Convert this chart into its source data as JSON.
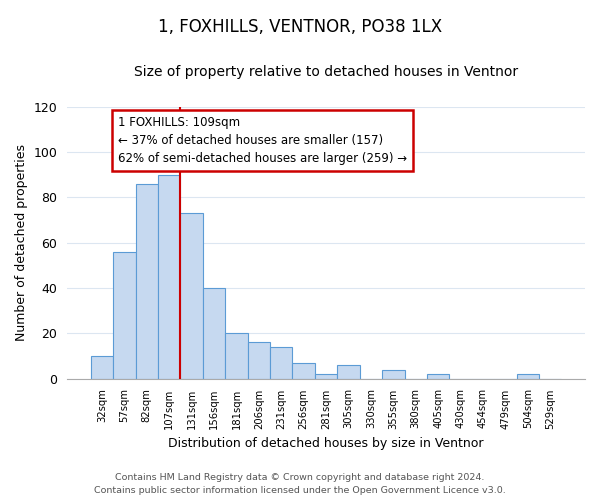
{
  "title": "1, FOXHILLS, VENTNOR, PO38 1LX",
  "subtitle": "Size of property relative to detached houses in Ventnor",
  "xlabel": "Distribution of detached houses by size in Ventnor",
  "ylabel": "Number of detached properties",
  "bar_labels": [
    "32sqm",
    "57sqm",
    "82sqm",
    "107sqm",
    "131sqm",
    "156sqm",
    "181sqm",
    "206sqm",
    "231sqm",
    "256sqm",
    "281sqm",
    "305sqm",
    "330sqm",
    "355sqm",
    "380sqm",
    "405sqm",
    "430sqm",
    "454sqm",
    "479sqm",
    "504sqm",
    "529sqm"
  ],
  "bar_values": [
    10,
    56,
    86,
    90,
    73,
    40,
    20,
    16,
    14,
    7,
    2,
    6,
    0,
    4,
    0,
    2,
    0,
    0,
    0,
    2,
    0
  ],
  "bar_color": "#c6d9f0",
  "bar_edge_color": "#5b9bd5",
  "ylim": [
    0,
    120
  ],
  "yticks": [
    0,
    20,
    40,
    60,
    80,
    100,
    120
  ],
  "annotation_title": "1 FOXHILLS: 109sqm",
  "annotation_line1": "← 37% of detached houses are smaller (157)",
  "annotation_line2": "62% of semi-detached houses are larger (259) →",
  "annotation_box_color": "#ffffff",
  "annotation_box_edge_color": "#cc0000",
  "footer_line1": "Contains HM Land Registry data © Crown copyright and database right 2024.",
  "footer_line2": "Contains public sector information licensed under the Open Government Licence v3.0.",
  "background_color": "#ffffff",
  "grid_color": "#dce6f1",
  "vline_color": "#cc0000",
  "title_fontsize": 12,
  "subtitle_fontsize": 10
}
